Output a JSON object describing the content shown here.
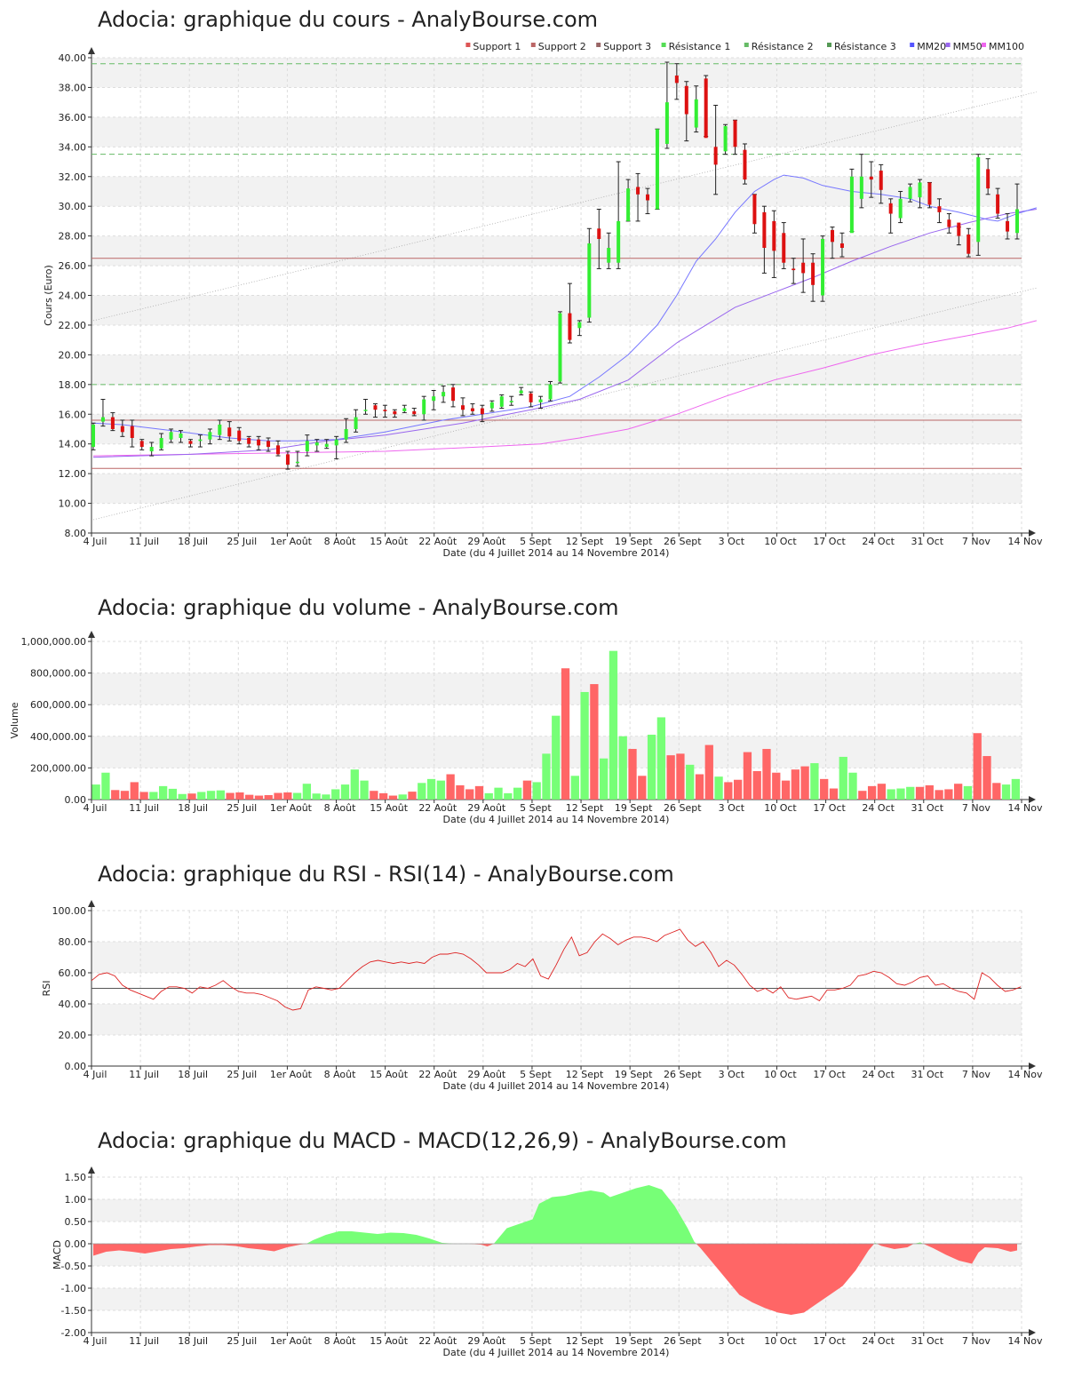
{
  "x_axis": {
    "ticks": [
      "4 Juil",
      "11 Juil",
      "18 Juil",
      "25 Juil",
      "1er Août",
      "8 Août",
      "15 Août",
      "22 Août",
      "29 Août",
      "5 Sept",
      "12 Sept",
      "19 Sept",
      "26 Sept",
      "3 Oct",
      "10 Oct",
      "17 Oct",
      "24 Oct",
      "31 Oct",
      "7 Nov",
      "14 Nov"
    ],
    "label": "Date (du 4 Juillet 2014 au 14 Novembre 2014)"
  },
  "colors": {
    "up": "#33ee33",
    "down": "#dd1111",
    "vol_up": "#77ff77",
    "vol_down": "#ff6666",
    "support": "#bb6666",
    "resistance": "#66bb66",
    "mm20": "#7777ff",
    "mm50": "#9966ee",
    "mm100": "#ee66ee",
    "band": "#f2f2f2"
  },
  "price": {
    "title": "Adocia: graphique du cours - AnalyBourse.com",
    "ylabel": "Cours (Euro)",
    "ylim": [
      8,
      40
    ],
    "yticks": [
      "8.00",
      "10.00",
      "12.00",
      "14.00",
      "16.00",
      "18.00",
      "20.00",
      "22.00",
      "24.00",
      "26.00",
      "28.00",
      "30.00",
      "32.00",
      "34.00",
      "36.00",
      "38.00",
      "40.00"
    ],
    "legend": [
      {
        "label": "Support 1",
        "color": "#dd5555"
      },
      {
        "label": "Support 2",
        "color": "#bb6666"
      },
      {
        "label": "Support 3",
        "color": "#996666"
      },
      {
        "label": "Résistance 1",
        "color": "#55dd55"
      },
      {
        "label": "Résistance 2",
        "color": "#66bb66"
      },
      {
        "label": "Résistance 3",
        "color": "#559955"
      },
      {
        "label": "MM20",
        "color": "#5555ff"
      },
      {
        "label": "MM50",
        "color": "#9966ee"
      },
      {
        "label": "MM100",
        "color": "#ee66ee"
      }
    ],
    "supports": [
      15.6,
      26.5,
      12.35
    ],
    "resistances": [
      18.0,
      33.5,
      39.6
    ],
    "candles": [
      [
        13.8,
        15.3,
        13.6,
        15.4
      ],
      [
        15.5,
        15.8,
        15.2,
        17.0
      ],
      [
        15.8,
        15.0,
        14.9,
        16.1
      ],
      [
        15.2,
        14.8,
        14.5,
        15.6
      ],
      [
        15.2,
        14.4,
        13.8,
        15.6
      ],
      [
        14.2,
        13.8,
        13.6,
        14.3
      ],
      [
        13.5,
        13.8,
        13.2,
        14.1
      ],
      [
        13.7,
        14.4,
        13.6,
        14.7
      ],
      [
        14.3,
        14.8,
        14.1,
        15.0
      ],
      [
        14.4,
        14.7,
        14.1,
        14.9
      ],
      [
        14.2,
        14.0,
        13.8,
        14.3
      ],
      [
        14.2,
        14.3,
        13.8,
        14.6
      ],
      [
        14.3,
        14.8,
        14.0,
        15.0
      ],
      [
        14.6,
        15.3,
        14.3,
        15.6
      ],
      [
        15.1,
        14.5,
        14.2,
        15.5
      ],
      [
        14.9,
        14.2,
        14.0,
        15.1
      ],
      [
        14.4,
        14.0,
        13.8,
        14.5
      ],
      [
        14.3,
        13.9,
        13.6,
        14.5
      ],
      [
        14.2,
        13.8,
        13.5,
        14.4
      ],
      [
        13.9,
        13.3,
        13.2,
        14.2
      ],
      [
        13.3,
        12.6,
        12.3,
        13.5
      ],
      [
        12.8,
        12.8,
        12.5,
        13.5
      ],
      [
        13.5,
        14.2,
        13.2,
        14.6
      ],
      [
        13.9,
        14.1,
        13.5,
        14.3
      ],
      [
        13.8,
        14.0,
        13.7,
        14.3
      ],
      [
        13.9,
        14.3,
        13.0,
        14.5
      ],
      [
        14.3,
        15.0,
        14.1,
        15.7
      ],
      [
        15.0,
        15.8,
        14.8,
        16.3
      ],
      [
        16.3,
        16.3,
        16.0,
        17.0
      ],
      [
        16.6,
        16.3,
        15.8,
        16.7
      ],
      [
        16.3,
        16.2,
        15.8,
        16.6
      ],
      [
        16.2,
        16.0,
        15.8,
        16.3
      ],
      [
        16.2,
        16.4,
        16.1,
        16.6
      ],
      [
        16.2,
        16.0,
        15.9,
        16.4
      ],
      [
        16.0,
        17.0,
        15.6,
        17.2
      ],
      [
        16.9,
        17.2,
        16.3,
        17.6
      ],
      [
        17.2,
        17.5,
        16.8,
        17.9
      ],
      [
        17.8,
        16.9,
        16.5,
        18.0
      ],
      [
        16.6,
        16.3,
        15.9,
        17.1
      ],
      [
        16.4,
        16.2,
        16.0,
        16.7
      ],
      [
        16.4,
        16.0,
        15.5,
        16.6
      ],
      [
        16.4,
        16.8,
        16.2,
        16.9
      ],
      [
        16.5,
        17.2,
        16.4,
        17.3
      ],
      [
        16.8,
        16.9,
        16.6,
        17.2
      ],
      [
        17.4,
        17.6,
        17.3,
        17.8
      ],
      [
        17.4,
        16.8,
        16.5,
        17.5
      ],
      [
        16.8,
        17.0,
        16.4,
        17.2
      ],
      [
        17.0,
        18.0,
        16.9,
        18.2
      ],
      [
        18.2,
        22.8,
        18.1,
        22.9
      ],
      [
        22.8,
        21.0,
        20.8,
        24.8
      ],
      [
        21.8,
        22.2,
        21.3,
        22.3
      ],
      [
        22.5,
        27.5,
        22.2,
        28.5
      ],
      [
        28.5,
        27.8,
        25.8,
        29.8
      ],
      [
        26.2,
        27.2,
        25.8,
        28.2
      ],
      [
        26.2,
        29.0,
        25.8,
        33.0
      ],
      [
        29.0,
        31.2,
        29.0,
        31.8
      ],
      [
        31.3,
        30.8,
        29.0,
        32.2
      ],
      [
        30.8,
        30.4,
        29.5,
        31.2
      ],
      [
        29.8,
        35.2,
        29.8,
        35.2
      ],
      [
        34.2,
        37.0,
        33.9,
        39.7
      ],
      [
        38.8,
        38.3,
        37.2,
        39.6
      ],
      [
        38.1,
        36.2,
        34.4,
        38.4
      ],
      [
        35.3,
        37.2,
        35.0,
        38.1
      ],
      [
        38.6,
        34.6,
        34.7,
        38.8
      ],
      [
        34.0,
        32.8,
        30.8,
        36.8
      ],
      [
        33.7,
        35.4,
        33.5,
        35.5
      ],
      [
        35.8,
        34.0,
        33.5,
        35.8
      ],
      [
        33.8,
        31.8,
        31.5,
        34.2
      ],
      [
        30.8,
        28.8,
        28.2,
        30.8
      ],
      [
        29.6,
        27.2,
        25.5,
        30.0
      ],
      [
        29.0,
        27.0,
        25.2,
        29.7
      ],
      [
        28.2,
        26.2,
        25.8,
        28.9
      ],
      [
        25.8,
        25.7,
        24.8,
        26.5
      ],
      [
        26.2,
        25.5,
        24.2,
        27.8
      ],
      [
        26.2,
        24.7,
        23.6,
        26.8
      ],
      [
        24.0,
        27.8,
        23.6,
        28.0
      ],
      [
        28.4,
        27.6,
        26.5,
        28.6
      ],
      [
        27.5,
        27.2,
        26.6,
        28.2
      ],
      [
        28.2,
        32.0,
        28.3,
        32.5
      ],
      [
        30.5,
        32.0,
        29.9,
        33.5
      ],
      [
        32.0,
        31.8,
        30.6,
        33.0
      ],
      [
        32.4,
        31.1,
        30.2,
        32.8
      ],
      [
        30.2,
        29.5,
        28.2,
        30.5
      ],
      [
        29.2,
        30.5,
        28.9,
        31.0
      ],
      [
        30.5,
        31.3,
        30.3,
        31.5
      ],
      [
        30.6,
        31.6,
        29.9,
        31.8
      ],
      [
        31.6,
        30.1,
        29.9,
        31.6
      ],
      [
        30.0,
        29.6,
        28.9,
        30.5
      ],
      [
        29.1,
        28.6,
        28.2,
        29.5
      ],
      [
        28.9,
        28.0,
        27.4,
        28.6
      ],
      [
        28.1,
        26.8,
        26.6,
        28.5
      ],
      [
        27.6,
        33.3,
        26.7,
        33.5
      ],
      [
        32.5,
        31.2,
        30.8,
        33.2
      ],
      [
        30.8,
        29.5,
        29.2,
        31.2
      ],
      [
        29.0,
        28.3,
        27.8,
        29.5
      ],
      [
        28.2,
        29.8,
        27.8,
        31.5
      ]
    ],
    "mm20": [
      [
        0,
        15.4
      ],
      [
        3,
        15.3
      ],
      [
        8,
        14.9
      ],
      [
        14,
        14.4
      ],
      [
        18,
        14.2
      ],
      [
        21,
        14.2
      ],
      [
        25,
        14.3
      ],
      [
        30,
        14.8
      ],
      [
        36,
        15.6
      ],
      [
        40,
        16.0
      ],
      [
        45,
        16.5
      ],
      [
        49,
        17.2
      ],
      [
        52,
        18.5
      ],
      [
        55,
        20.0
      ],
      [
        58,
        22.0
      ],
      [
        60,
        24.0
      ],
      [
        62,
        26.3
      ],
      [
        64,
        27.8
      ],
      [
        66,
        29.6
      ],
      [
        68,
        31.0
      ],
      [
        70,
        31.8
      ],
      [
        71,
        32.1
      ],
      [
        73,
        31.9
      ],
      [
        75,
        31.4
      ],
      [
        78,
        31.0
      ],
      [
        81,
        30.8
      ],
      [
        84,
        30.5
      ],
      [
        86,
        30.0
      ],
      [
        89,
        29.6
      ],
      [
        92,
        29.1
      ],
      [
        93,
        29.0
      ],
      [
        95,
        29.5
      ],
      [
        97,
        29.9
      ]
    ],
    "mm50": [
      [
        0,
        13.1
      ],
      [
        10,
        13.3
      ],
      [
        18,
        13.6
      ],
      [
        24,
        14.2
      ],
      [
        30,
        14.6
      ],
      [
        38,
        15.4
      ],
      [
        45,
        16.3
      ],
      [
        50,
        17.0
      ],
      [
        55,
        18.3
      ],
      [
        60,
        20.8
      ],
      [
        66,
        23.2
      ],
      [
        70,
        24.2
      ],
      [
        74,
        25.2
      ],
      [
        78,
        26.3
      ],
      [
        82,
        27.3
      ],
      [
        86,
        28.2
      ],
      [
        90,
        28.9
      ],
      [
        94,
        29.5
      ],
      [
        97,
        29.8
      ]
    ],
    "mm100": [
      [
        0,
        13.2
      ],
      [
        10,
        13.3
      ],
      [
        20,
        13.4
      ],
      [
        30,
        13.5
      ],
      [
        40,
        13.8
      ],
      [
        46,
        14.0
      ],
      [
        50,
        14.4
      ],
      [
        55,
        15.0
      ],
      [
        60,
        16.0
      ],
      [
        65,
        17.2
      ],
      [
        70,
        18.3
      ],
      [
        75,
        19.1
      ],
      [
        80,
        20.0
      ],
      [
        85,
        20.7
      ],
      [
        90,
        21.3
      ],
      [
        94,
        21.8
      ],
      [
        97,
        22.3
      ]
    ],
    "channel": {
      "lower": [
        [
          0,
          8.9
        ],
        [
          97,
          24.5
        ]
      ],
      "upper": [
        [
          0,
          22.3
        ],
        [
          97,
          37.7
        ]
      ]
    }
  },
  "volume": {
    "title": "Adocia: graphique du volume - AnalyBourse.com",
    "ylabel": "Volume",
    "ylim": [
      0,
      1000000
    ],
    "yticks": [
      "0.00",
      "200,000.00",
      "400,000.00",
      "600,000.00",
      "800,000.00",
      "1,000,000.00"
    ],
    "values": [
      95000,
      170000,
      60000,
      55000,
      110000,
      48000,
      48000,
      85000,
      68000,
      35000,
      38000,
      48000,
      55000,
      58000,
      42000,
      45000,
      30000,
      25000,
      28000,
      42000,
      45000,
      42000,
      100000,
      38000,
      32000,
      65000,
      95000,
      190000,
      120000,
      55000,
      40000,
      25000,
      32000,
      50000,
      105000,
      130000,
      120000,
      160000,
      90000,
      65000,
      85000,
      40000,
      75000,
      40000,
      75000,
      120000,
      110000,
      290000,
      530000,
      830000,
      150000,
      680000,
      730000,
      260000,
      940000,
      400000,
      320000,
      150000,
      410000,
      520000,
      280000,
      290000,
      220000,
      160000,
      345000,
      145000,
      110000,
      125000,
      300000,
      180000,
      320000,
      170000,
      120000,
      190000,
      210000,
      230000,
      130000,
      70000,
      270000,
      170000,
      55000,
      85000,
      100000,
      65000,
      70000,
      80000,
      80000,
      90000,
      60000,
      65000,
      100000,
      85000,
      420000,
      275000,
      105000,
      95000,
      130000
    ]
  },
  "rsi": {
    "title": "Adocia: graphique du RSI - RSI(14) - AnalyBourse.com",
    "ylabel": "RSI",
    "ylim": [
      0,
      100
    ],
    "yticks": [
      "0.00",
      "20.00",
      "40.00",
      "60.00",
      "80.00",
      "100.00"
    ],
    "reference": 50,
    "values": [
      55,
      59,
      60,
      58,
      52,
      49,
      47,
      45,
      43,
      48,
      51,
      51,
      50,
      47,
      51,
      50,
      52,
      55,
      51,
      48,
      47,
      47,
      46,
      44,
      42,
      38,
      36,
      37,
      49,
      51,
      50,
      49,
      50,
      55,
      60,
      64,
      67,
      68,
      67,
      66,
      67,
      66,
      67,
      66,
      70,
      72,
      72,
      73,
      72,
      69,
      65,
      60,
      60,
      60,
      62,
      66,
      64,
      69,
      58,
      56,
      65,
      75,
      83,
      71,
      73,
      80,
      85,
      82,
      78,
      81,
      83,
      83,
      82,
      80,
      84,
      86,
      88,
      81,
      77,
      80,
      73,
      64,
      68,
      65,
      59,
      52,
      48,
      50,
      47,
      51,
      44,
      43,
      44,
      45,
      42,
      49,
      49,
      50,
      52,
      58,
      59,
      61,
      60,
      57,
      53,
      52,
      54,
      57,
      58,
      52,
      53,
      50,
      48,
      47,
      43,
      60,
      57,
      52,
      48,
      49,
      51
    ]
  },
  "macd": {
    "title": "Adocia: graphique du MACD - MACD(12,26,9) - AnalyBourse.com",
    "ylabel": "MACD",
    "ylim": [
      -2,
      1.5
    ],
    "yticks": [
      "-2.00",
      "-1.50",
      "-1.00",
      "-0.50",
      "0.00",
      "0.50",
      "1.00",
      "1.50"
    ],
    "points": [
      [
        0,
        -0.27
      ],
      [
        2,
        -0.18
      ],
      [
        4,
        -0.15
      ],
      [
        6,
        -0.18
      ],
      [
        8,
        -0.22
      ],
      [
        10,
        -0.17
      ],
      [
        12,
        -0.12
      ],
      [
        14,
        -0.1
      ],
      [
        16,
        -0.06
      ],
      [
        18,
        -0.03
      ],
      [
        20,
        -0.03
      ],
      [
        22,
        -0.05
      ],
      [
        24,
        -0.1
      ],
      [
        26,
        -0.13
      ],
      [
        28,
        -0.17
      ],
      [
        30,
        -0.08
      ],
      [
        32,
        -0.02
      ],
      [
        33,
        0.0
      ],
      [
        34,
        0.08
      ],
      [
        36,
        0.2
      ],
      [
        38,
        0.28
      ],
      [
        40,
        0.28
      ],
      [
        42,
        0.25
      ],
      [
        44,
        0.22
      ],
      [
        46,
        0.25
      ],
      [
        48,
        0.24
      ],
      [
        50,
        0.2
      ],
      [
        52,
        0.12
      ],
      [
        54,
        0.02
      ],
      [
        56,
        0.0
      ],
      [
        58,
        0.0
      ],
      [
        60,
        -0.02
      ],
      [
        61,
        -0.06
      ],
      [
        62,
        0.0
      ],
      [
        64,
        0.35
      ],
      [
        66,
        0.45
      ],
      [
        68,
        0.55
      ],
      [
        69,
        0.9
      ],
      [
        71,
        1.05
      ],
      [
        73,
        1.08
      ],
      [
        75,
        1.15
      ],
      [
        77,
        1.2
      ],
      [
        79,
        1.15
      ],
      [
        80,
        1.05
      ],
      [
        82,
        1.15
      ],
      [
        84,
        1.25
      ],
      [
        86,
        1.32
      ],
      [
        88,
        1.22
      ],
      [
        90,
        0.85
      ],
      [
        92,
        0.35
      ],
      [
        93,
        0.05
      ],
      [
        94,
        -0.1
      ],
      [
        96,
        -0.45
      ],
      [
        98,
        -0.8
      ],
      [
        100,
        -1.15
      ],
      [
        102,
        -1.32
      ],
      [
        104,
        -1.45
      ],
      [
        106,
        -1.55
      ],
      [
        108,
        -1.6
      ],
      [
        110,
        -1.55
      ],
      [
        112,
        -1.35
      ],
      [
        114,
        -1.15
      ],
      [
        116,
        -0.95
      ],
      [
        118,
        -0.6
      ],
      [
        120,
        -0.15
      ],
      [
        121,
        0.02
      ],
      [
        122,
        -0.05
      ],
      [
        124,
        -0.12
      ],
      [
        126,
        -0.08
      ],
      [
        127,
        0.0
      ],
      [
        128,
        0.03
      ],
      [
        130,
        -0.1
      ],
      [
        132,
        -0.25
      ],
      [
        134,
        -0.38
      ],
      [
        136,
        -0.45
      ],
      [
        137,
        -0.2
      ],
      [
        138,
        -0.08
      ],
      [
        140,
        -0.1
      ],
      [
        142,
        -0.18
      ],
      [
        143,
        -0.15
      ]
    ]
  }
}
